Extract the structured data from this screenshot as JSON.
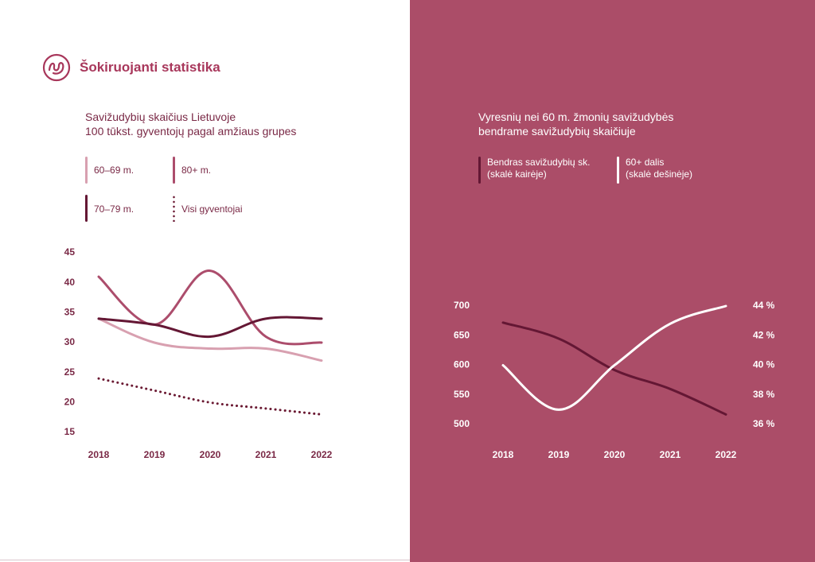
{
  "brand": {
    "title": "Šokiruojanti statistika"
  },
  "colors": {
    "right_background": "#ab4d68",
    "series_60_69": "#d8a0b0",
    "series_80_plus": "#ac4d6c",
    "series_70_79": "#641734",
    "series_all": "#6b1a33",
    "total_line": "#641734",
    "share_line": "#ffffff"
  },
  "left_chart": {
    "title_line1": "Savižudybių skaičius Lietuvoje",
    "title_line2": "100 tūkst. gyventojų pagal amžiaus grupes"
  },
  "right_chart": {
    "title_line1": "Vyresnių nei 60 m. žmonių savižudybės",
    "title_line2": "bendrame savižudybių skaičiuje"
  },
  "legends": {
    "left": [
      {
        "label": "60–69 m."
      },
      {
        "label": "80+ m."
      },
      {
        "label": "70–79 m."
      },
      {
        "label": "Visi gyventojai"
      }
    ],
    "right": [
      {
        "line1": "Bendras savižudybių sk.",
        "line2": "(skalė kairėje)"
      },
      {
        "line1": "60+ dalis",
        "line2": "(skalė dešinėje)"
      }
    ]
  },
  "chart_data": [
    {
      "type": "line",
      "title": "Savižudybių skaičius Lietuvoje 100 tūkst. gyventojų pagal amžiaus grupes",
      "x": [
        "2018",
        "2019",
        "2020",
        "2021",
        "2022"
      ],
      "ylim": [
        15,
        45
      ],
      "y_ticks": [
        "45",
        "40",
        "35",
        "30",
        "25",
        "20",
        "15"
      ],
      "grid": false,
      "legend_position": "top-left",
      "series": [
        {
          "name": "60–69 m.",
          "values": [
            34,
            30,
            29,
            29,
            27
          ]
        },
        {
          "name": "80+ m.",
          "values": [
            41,
            33,
            42,
            31,
            30
          ]
        },
        {
          "name": "70–79 m.",
          "values": [
            34,
            33,
            31,
            34,
            34
          ]
        },
        {
          "name": "Visi gyventojai",
          "values": [
            24,
            22,
            20,
            19,
            18
          ]
        }
      ]
    },
    {
      "type": "line",
      "title": "Vyresnių nei 60 m. žmonių savižudybės bendrame savižudybių skaičiuje",
      "x": [
        "2018",
        "2019",
        "2020",
        "2021",
        "2022"
      ],
      "ylim_left": [
        500,
        700
      ],
      "ylim_right": [
        36,
        44
      ],
      "y_ticks_left": [
        "700",
        "650",
        "600",
        "550",
        "500"
      ],
      "y_ticks_right": [
        "44 %",
        "42 %",
        "40 %",
        "38 %",
        "36 %"
      ],
      "grid": false,
      "legend_position": "top-left",
      "series": [
        {
          "name": "Bendras savižudybių sk. (skalė kairėje)",
          "axis": "left",
          "values": [
            672,
            645,
            592,
            560,
            517
          ]
        },
        {
          "name": "60+ dalis (skalė dešinėje)",
          "axis": "right",
          "values": [
            40,
            37,
            40,
            42.8,
            44
          ]
        }
      ]
    }
  ]
}
